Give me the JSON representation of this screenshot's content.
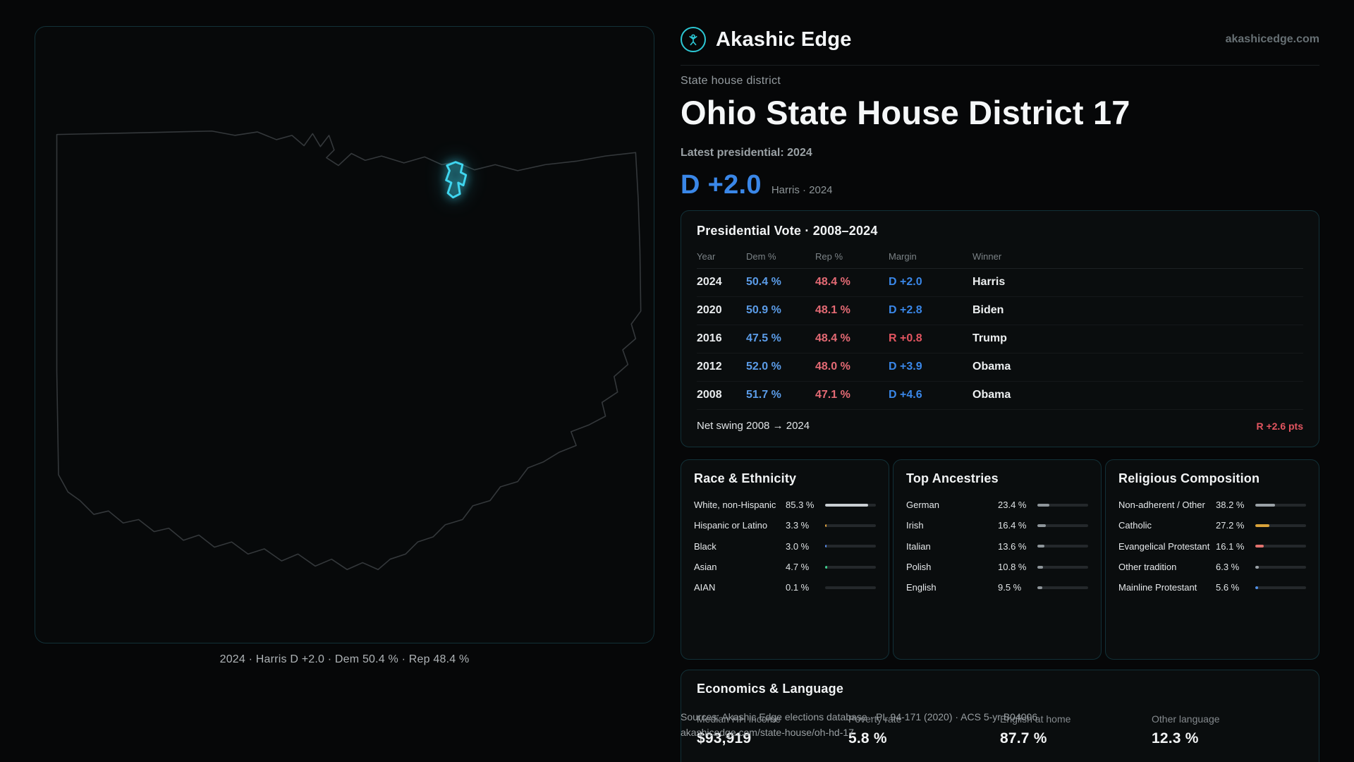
{
  "brand": {
    "name": "Akashic Edge",
    "domain": "akashicedge.com"
  },
  "hero": {
    "eyebrow": "State house district",
    "title": "Ohio State House District 17",
    "latest_label": "Latest presidential: 2024",
    "margin_value": "D +2.0",
    "margin_caption": "Harris · 2024"
  },
  "map": {
    "caption": "2024 · Harris D +2.0 · Dem 50.4 % · Rep 48.4 %"
  },
  "presidential": {
    "title": "Presidential Vote · 2008–2024",
    "columns": [
      "Year",
      "Dem %",
      "Rep %",
      "Margin",
      "Winner"
    ],
    "rows": [
      {
        "year": "2024",
        "dem": "50.4 %",
        "rep": "48.4 %",
        "margin": "D +2.0",
        "party": "D",
        "winner": "Harris"
      },
      {
        "year": "2020",
        "dem": "50.9 %",
        "rep": "48.1 %",
        "margin": "D +2.8",
        "party": "D",
        "winner": "Biden"
      },
      {
        "year": "2016",
        "dem": "47.5 %",
        "rep": "48.4 %",
        "margin": "R +0.8",
        "party": "R",
        "winner": "Trump"
      },
      {
        "year": "2012",
        "dem": "52.0 %",
        "rep": "48.0 %",
        "margin": "D +3.9",
        "party": "D",
        "winner": "Obama"
      },
      {
        "year": "2008",
        "dem": "51.7 %",
        "rep": "47.1 %",
        "margin": "D +4.6",
        "party": "D",
        "winner": "Obama"
      }
    ],
    "swing_label": "Net swing 2008 → 2024",
    "swing_value": "R +2.6 pts"
  },
  "race": {
    "title": "Race & Ethnicity",
    "rows": [
      {
        "label": "White, non-Hispanic",
        "value": "85.3 %",
        "pct": 85.3,
        "color": "#c9ced2"
      },
      {
        "label": "Hispanic or Latino",
        "value": "3.3 %",
        "pct": 3.3,
        "color": "#e3a43c"
      },
      {
        "label": "Black",
        "value": "3.0 %",
        "pct": 3.0,
        "color": "#5b8def"
      },
      {
        "label": "Asian",
        "value": "4.7 %",
        "pct": 4.7,
        "color": "#3ecf8e"
      },
      {
        "label": "AIAN",
        "value": "0.1 %",
        "pct": 0.1,
        "color": "#9aa1a6"
      }
    ]
  },
  "ancestries": {
    "title": "Top Ancestries",
    "rows": [
      {
        "label": "German",
        "value": "23.4 %",
        "pct": 23.4,
        "color": "#8e959a"
      },
      {
        "label": "Irish",
        "value": "16.4 %",
        "pct": 16.4,
        "color": "#8e959a"
      },
      {
        "label": "Italian",
        "value": "13.6 %",
        "pct": 13.6,
        "color": "#8e959a"
      },
      {
        "label": "Polish",
        "value": "10.8 %",
        "pct": 10.8,
        "color": "#8e959a"
      },
      {
        "label": "English",
        "value": "9.5 %",
        "pct": 9.5,
        "color": "#8e959a"
      }
    ]
  },
  "religion": {
    "title": "Religious Composition",
    "rows": [
      {
        "label": "Non-adherent / Other",
        "value": "38.2 %",
        "pct": 38.2,
        "color": "#9aa1a6"
      },
      {
        "label": "Catholic",
        "value": "27.2 %",
        "pct": 27.2,
        "color": "#d9a23a"
      },
      {
        "label": "Evangelical Protestant",
        "value": "16.1 %",
        "pct": 16.1,
        "color": "#e2726e"
      },
      {
        "label": "Other tradition",
        "value": "6.3 %",
        "pct": 6.3,
        "color": "#9aa1a6"
      },
      {
        "label": "Mainline Protestant",
        "value": "5.6 %",
        "pct": 5.6,
        "color": "#4f8fe8"
      }
    ]
  },
  "economics": {
    "title": "Economics & Language",
    "stats": [
      {
        "label": "Median HH income",
        "value": "$93,919"
      },
      {
        "label": "Poverty rate",
        "value": "5.8 %"
      },
      {
        "label": "English at home",
        "value": "87.7 %"
      },
      {
        "label": "Other language",
        "value": "12.3 %"
      }
    ]
  },
  "sources": {
    "line1": "Sources: Akashic Edge elections database · PL 94-171 (2020) · ACS 5-yr B04006",
    "line2": "akashicedge.com/state-house/oh-hd-17"
  },
  "colors": {
    "dem": "#4f94e8",
    "rep": "#e2606b",
    "accent": "#35c9dc",
    "gold": "#d9a23a"
  }
}
